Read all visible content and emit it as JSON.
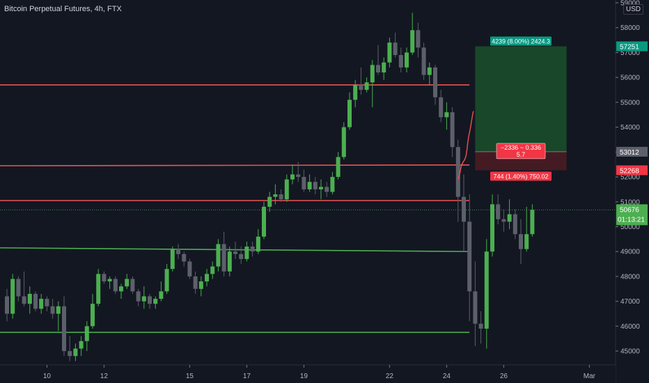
{
  "chart_data": {
    "type": "candlestick",
    "title": "Bitcoin Perpetual Futures, 4h, FTX",
    "currency": "USD",
    "ylim": [
      44500,
      59000
    ],
    "y_ticks": [
      45000,
      46000,
      47000,
      48000,
      49000,
      50000,
      51000,
      52000,
      53000,
      54000,
      55000,
      56000,
      57000,
      58000,
      59000
    ],
    "x_ticks": [
      "10",
      "12",
      "15",
      "17",
      "19",
      "22",
      "24",
      "26",
      "Mar"
    ],
    "x_tick_index": [
      7,
      17,
      32,
      42,
      52,
      67,
      77,
      87,
      102
    ],
    "n_slots": 106,
    "grid": false,
    "colors": {
      "up": "#4caf50",
      "down": "#5d606b",
      "red_line": "#ef5350",
      "green_line": "#4caf50",
      "target_zone": "#1b4d2a",
      "stop_zone": "#4a1c24",
      "price_label": "#4caf50",
      "target_label": "#089981",
      "stop_label": "#f23645"
    },
    "candles": [
      {
        "o": 47200,
        "h": 47500,
        "l": 46200,
        "c": 46500
      },
      {
        "o": 46500,
        "h": 48100,
        "l": 46300,
        "c": 47900
      },
      {
        "o": 47900,
        "h": 48000,
        "l": 47000,
        "c": 47200
      },
      {
        "o": 47200,
        "h": 48200,
        "l": 46800,
        "c": 46900
      },
      {
        "o": 46900,
        "h": 47600,
        "l": 46500,
        "c": 47300
      },
      {
        "o": 47300,
        "h": 47400,
        "l": 46600,
        "c": 46700
      },
      {
        "o": 46700,
        "h": 47300,
        "l": 46500,
        "c": 47100
      },
      {
        "o": 47100,
        "h": 47200,
        "l": 46600,
        "c": 46800
      },
      {
        "o": 46800,
        "h": 47100,
        "l": 46300,
        "c": 46500
      },
      {
        "o": 46500,
        "h": 47000,
        "l": 45800,
        "c": 46800
      },
      {
        "o": 46800,
        "h": 47200,
        "l": 44800,
        "c": 45000
      },
      {
        "o": 45000,
        "h": 45600,
        "l": 44600,
        "c": 44800
      },
      {
        "o": 44800,
        "h": 45300,
        "l": 44600,
        "c": 45100
      },
      {
        "o": 45100,
        "h": 45600,
        "l": 44800,
        "c": 45400
      },
      {
        "o": 45400,
        "h": 46200,
        "l": 45000,
        "c": 46000
      },
      {
        "o": 46000,
        "h": 47300,
        "l": 45900,
        "c": 46900
      },
      {
        "o": 46900,
        "h": 48300,
        "l": 46800,
        "c": 48100
      },
      {
        "o": 48100,
        "h": 48200,
        "l": 47700,
        "c": 47800
      },
      {
        "o": 47800,
        "h": 48000,
        "l": 47500,
        "c": 47900
      },
      {
        "o": 47900,
        "h": 48000,
        "l": 47300,
        "c": 47400
      },
      {
        "o": 47400,
        "h": 47700,
        "l": 47100,
        "c": 47600
      },
      {
        "o": 47600,
        "h": 48100,
        "l": 47500,
        "c": 47900
      },
      {
        "o": 47900,
        "h": 48000,
        "l": 47300,
        "c": 47400
      },
      {
        "o": 47400,
        "h": 47500,
        "l": 46800,
        "c": 47000
      },
      {
        "o": 47000,
        "h": 47600,
        "l": 46700,
        "c": 47200
      },
      {
        "o": 47200,
        "h": 47300,
        "l": 46700,
        "c": 46900
      },
      {
        "o": 46900,
        "h": 47200,
        "l": 46700,
        "c": 47100
      },
      {
        "o": 47100,
        "h": 47800,
        "l": 47000,
        "c": 47400
      },
      {
        "o": 47400,
        "h": 48500,
        "l": 47300,
        "c": 48300
      },
      {
        "o": 48300,
        "h": 49200,
        "l": 48200,
        "c": 49100
      },
      {
        "o": 49100,
        "h": 49300,
        "l": 48700,
        "c": 48900
      },
      {
        "o": 48900,
        "h": 49000,
        "l": 48400,
        "c": 48600
      },
      {
        "o": 48600,
        "h": 48700,
        "l": 47900,
        "c": 48000
      },
      {
        "o": 48000,
        "h": 48200,
        "l": 47300,
        "c": 47500
      },
      {
        "o": 47500,
        "h": 48000,
        "l": 47200,
        "c": 47800
      },
      {
        "o": 47800,
        "h": 48300,
        "l": 47600,
        "c": 48100
      },
      {
        "o": 48100,
        "h": 48600,
        "l": 47900,
        "c": 48400
      },
      {
        "o": 48400,
        "h": 49500,
        "l": 48200,
        "c": 49300
      },
      {
        "o": 49300,
        "h": 49800,
        "l": 48000,
        "c": 48200
      },
      {
        "o": 48200,
        "h": 49200,
        "l": 48000,
        "c": 49000
      },
      {
        "o": 49000,
        "h": 49400,
        "l": 48700,
        "c": 48900
      },
      {
        "o": 48900,
        "h": 49200,
        "l": 48500,
        "c": 48700
      },
      {
        "o": 48700,
        "h": 49400,
        "l": 48600,
        "c": 49200
      },
      {
        "o": 49200,
        "h": 49400,
        "l": 48800,
        "c": 49000
      },
      {
        "o": 49000,
        "h": 49900,
        "l": 48900,
        "c": 49600
      },
      {
        "o": 49600,
        "h": 51000,
        "l": 49500,
        "c": 50800
      },
      {
        "o": 50800,
        "h": 51400,
        "l": 50600,
        "c": 51200
      },
      {
        "o": 51200,
        "h": 51700,
        "l": 50900,
        "c": 51300
      },
      {
        "o": 51300,
        "h": 51500,
        "l": 51000,
        "c": 51100
      },
      {
        "o": 51100,
        "h": 52100,
        "l": 51000,
        "c": 51900
      },
      {
        "o": 51900,
        "h": 52500,
        "l": 51700,
        "c": 52100
      },
      {
        "o": 52100,
        "h": 52600,
        "l": 51800,
        "c": 52000
      },
      {
        "o": 52000,
        "h": 52300,
        "l": 51400,
        "c": 51500
      },
      {
        "o": 51500,
        "h": 52100,
        "l": 51400,
        "c": 51800
      },
      {
        "o": 51800,
        "h": 52000,
        "l": 51300,
        "c": 51500
      },
      {
        "o": 51500,
        "h": 51900,
        "l": 51100,
        "c": 51600
      },
      {
        "o": 51600,
        "h": 51800,
        "l": 51200,
        "c": 51400
      },
      {
        "o": 51400,
        "h": 52200,
        "l": 51300,
        "c": 52000
      },
      {
        "o": 52000,
        "h": 53000,
        "l": 51900,
        "c": 52800
      },
      {
        "o": 52800,
        "h": 54200,
        "l": 52700,
        "c": 54000
      },
      {
        "o": 54000,
        "h": 55400,
        "l": 53900,
        "c": 55100
      },
      {
        "o": 55100,
        "h": 55900,
        "l": 54800,
        "c": 55700
      },
      {
        "o": 55700,
        "h": 56400,
        "l": 55300,
        "c": 55500
      },
      {
        "o": 55500,
        "h": 56000,
        "l": 55400,
        "c": 55800
      },
      {
        "o": 55800,
        "h": 56700,
        "l": 54800,
        "c": 56500
      },
      {
        "o": 56500,
        "h": 57300,
        "l": 56100,
        "c": 56200
      },
      {
        "o": 56200,
        "h": 56800,
        "l": 55900,
        "c": 56600
      },
      {
        "o": 56600,
        "h": 57600,
        "l": 56400,
        "c": 57400
      },
      {
        "o": 57400,
        "h": 57800,
        "l": 56800,
        "c": 56900
      },
      {
        "o": 56900,
        "h": 57200,
        "l": 56200,
        "c": 56400
      },
      {
        "o": 56400,
        "h": 57200,
        "l": 56200,
        "c": 57000
      },
      {
        "o": 57000,
        "h": 58600,
        "l": 56900,
        "c": 57900
      },
      {
        "o": 57900,
        "h": 58200,
        "l": 56800,
        "c": 57200
      },
      {
        "o": 57200,
        "h": 57400,
        "l": 55900,
        "c": 56100
      },
      {
        "o": 56100,
        "h": 56600,
        "l": 55700,
        "c": 56400
      },
      {
        "o": 56400,
        "h": 56500,
        "l": 54900,
        "c": 55200
      },
      {
        "o": 55200,
        "h": 55500,
        "l": 54200,
        "c": 54400
      },
      {
        "o": 54400,
        "h": 55000,
        "l": 53900,
        "c": 54600
      },
      {
        "o": 54600,
        "h": 54800,
        "l": 52800,
        "c": 53200
      },
      {
        "o": 53200,
        "h": 53500,
        "l": 50200,
        "c": 51200
      },
      {
        "o": 51200,
        "h": 52100,
        "l": 49000,
        "c": 50200
      },
      {
        "o": 50200,
        "h": 51300,
        "l": 46200,
        "c": 47400
      },
      {
        "o": 47400,
        "h": 48600,
        "l": 45200,
        "c": 46100
      },
      {
        "o": 46100,
        "h": 46600,
        "l": 45300,
        "c": 45900
      },
      {
        "o": 45900,
        "h": 49500,
        "l": 45100,
        "c": 49000
      },
      {
        "o": 49000,
        "h": 51300,
        "l": 48800,
        "c": 50900
      },
      {
        "o": 50900,
        "h": 51300,
        "l": 50100,
        "c": 50300
      },
      {
        "o": 50300,
        "h": 50700,
        "l": 49800,
        "c": 50200
      },
      {
        "o": 50200,
        "h": 51100,
        "l": 49900,
        "c": 50500
      },
      {
        "o": 50500,
        "h": 50700,
        "l": 49500,
        "c": 49700
      },
      {
        "o": 49700,
        "h": 50300,
        "l": 48500,
        "c": 49100
      },
      {
        "o": 49100,
        "h": 50800,
        "l": 49000,
        "c": 49700
      },
      {
        "o": 49700,
        "h": 50900,
        "l": 49600,
        "c": 50676
      }
    ],
    "horizontal_lines": [
      {
        "kind": "red",
        "y1": 55700,
        "y2": 55700
      },
      {
        "kind": "red",
        "y1": 52450,
        "y2": 52480
      },
      {
        "kind": "red",
        "y1": 51050,
        "y2": 51050
      },
      {
        "kind": "green",
        "y1": 49150,
        "y2": 49000
      },
      {
        "kind": "green",
        "y1": 45750,
        "y2": 45750
      }
    ],
    "position": {
      "entry": 53012,
      "target": 57251,
      "stop": 52268,
      "target_label": "4239 (8.00%) 2424.3",
      "stop_label": "744 (1.40%) 750.02",
      "ratio_line1": "−2336 ~ 0.336",
      "ratio_line2": "5.7"
    },
    "last_price": "50676",
    "countdown": "01:13:21",
    "price_labels": {
      "target": "57251",
      "entry": "53012",
      "stop": "52268"
    }
  }
}
